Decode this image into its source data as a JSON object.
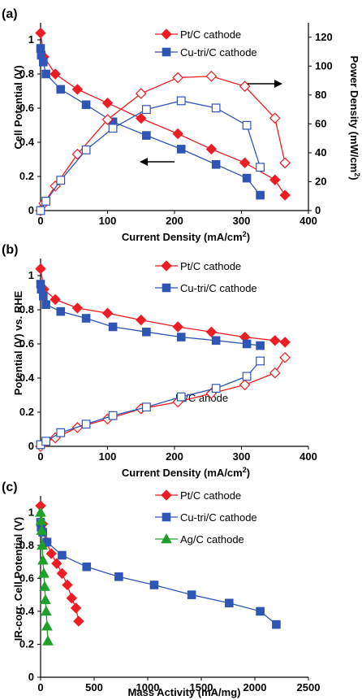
{
  "colors": {
    "pt": "#ee1c24",
    "cu": "#2f55b5",
    "ag": "#1fa02a",
    "axis": "#000000"
  },
  "chart_data": [
    {
      "panel_label": "(a)",
      "type": "line",
      "xlabel": "Current Density (mA/cm2)",
      "ylabel": "Cell Potential (V)",
      "y2label": "Power Density (mW/cm2)",
      "xlim": [
        0,
        400
      ],
      "ylim": [
        0,
        1.1
      ],
      "y2lim": [
        0,
        130
      ],
      "xticks": [
        "0",
        "100",
        "200",
        "300",
        "400"
      ],
      "yticks": [
        "0",
        "0.2",
        "0.4",
        "0.6",
        "0.8",
        "1"
      ],
      "y2ticks": [
        "0",
        "20",
        "40",
        "60",
        "80",
        "100",
        "120"
      ],
      "legend": [
        "Pt/C cathode",
        "Cu-tri/C cathode"
      ],
      "series": [
        {
          "name": "Pt/C cathode",
          "axis": "left",
          "marker": "diamond-filled",
          "color_key": "pt",
          "x": [
            0,
            5,
            22,
            55,
            100,
            150,
            205,
            255,
            305,
            350,
            365
          ],
          "y": [
            1.04,
            0.9,
            0.8,
            0.71,
            0.63,
            0.54,
            0.45,
            0.36,
            0.28,
            0.18,
            0.09
          ]
        },
        {
          "name": "Cu-tri/C cathode",
          "axis": "left",
          "marker": "square-filled",
          "color_key": "cu",
          "x": [
            0,
            1,
            4,
            8,
            30,
            68,
            108,
            158,
            210,
            262,
            308,
            328
          ],
          "y": [
            0.95,
            0.91,
            0.87,
            0.8,
            0.71,
            0.62,
            0.52,
            0.44,
            0.36,
            0.27,
            0.19,
            0.09
          ]
        },
        {
          "name": "Pt/C cathode (power)",
          "axis": "right",
          "marker": "diamond-open",
          "color_key": "pt",
          "x": [
            0,
            5,
            22,
            55,
            100,
            150,
            205,
            255,
            305,
            350,
            365
          ],
          "y": [
            0,
            5,
            17,
            39,
            63,
            81,
            92,
            93,
            86,
            64,
            33
          ]
        },
        {
          "name": "Cu-tri/C cathode (power)",
          "axis": "right",
          "marker": "square-open",
          "color_key": "cu",
          "x": [
            0,
            8,
            30,
            68,
            108,
            158,
            210,
            262,
            308,
            328
          ],
          "y": [
            0,
            6.5,
            21,
            42,
            57,
            70,
            76,
            71,
            59,
            30
          ]
        }
      ]
    },
    {
      "panel_label": "(b)",
      "type": "line",
      "xlabel": "Current Density (mA/cm2)",
      "ylabel": "Potential (V) vs. RHE",
      "xlim": [
        0,
        400
      ],
      "ylim": [
        0,
        1.1
      ],
      "xticks": [
        "0",
        "100",
        "200",
        "300",
        "400"
      ],
      "yticks": [
        "0",
        "0.2",
        "0.4",
        "0.6",
        "0.8",
        "1"
      ],
      "legend": [
        "Pt/C cathode",
        "Cu-tri/C cathode"
      ],
      "annotation": "Pt/C anode",
      "series": [
        {
          "name": "Pt/C cathode",
          "marker": "diamond-filled",
          "color_key": "pt",
          "x": [
            0,
            5,
            22,
            55,
            100,
            150,
            205,
            255,
            305,
            350,
            365
          ],
          "y": [
            1.04,
            0.92,
            0.86,
            0.81,
            0.78,
            0.74,
            0.7,
            0.67,
            0.64,
            0.62,
            0.61
          ]
        },
        {
          "name": "Cu-tri/C cathode",
          "marker": "square-filled",
          "color_key": "cu",
          "x": [
            0,
            1,
            4,
            8,
            30,
            68,
            108,
            158,
            210,
            262,
            308,
            328
          ],
          "y": [
            0.95,
            0.92,
            0.88,
            0.83,
            0.79,
            0.75,
            0.7,
            0.67,
            0.64,
            0.62,
            0.6,
            0.59
          ]
        },
        {
          "name": "Pt/C anode (Pt/C cathode run)",
          "marker": "diamond-open",
          "color_key": "pt",
          "x": [
            0,
            5,
            22,
            55,
            100,
            150,
            205,
            255,
            305,
            350,
            365
          ],
          "y": [
            0,
            0.02,
            0.05,
            0.11,
            0.16,
            0.22,
            0.26,
            0.31,
            0.36,
            0.43,
            0.52
          ]
        },
        {
          "name": "Pt/C anode (Cu-tri/C cathode run)",
          "marker": "square-open",
          "color_key": "cu",
          "x": [
            0,
            8,
            30,
            68,
            108,
            158,
            210,
            262,
            308,
            328
          ],
          "y": [
            0.01,
            0.03,
            0.08,
            0.13,
            0.18,
            0.23,
            0.29,
            0.34,
            0.41,
            0.5
          ]
        }
      ]
    },
    {
      "panel_label": "(c)",
      "type": "line",
      "xlabel": "Mass Activity (mA/mg)",
      "ylabel": "IR-corr. Cell Potential (V)",
      "xlim": [
        0,
        2500
      ],
      "ylim": [
        0,
        1.1
      ],
      "xticks": [
        "0",
        "500",
        "1000",
        "1500",
        "2000",
        "2500"
      ],
      "yticks": [
        "0",
        "0.2",
        "0.4",
        "0.6",
        "0.8",
        "1"
      ],
      "legend": [
        "Pt/C cathode",
        "Cu-tri/C cathode",
        "Ag/C cathode"
      ],
      "series": [
        {
          "name": "Pt/C cathode",
          "marker": "diamond-filled",
          "color_key": "pt",
          "x": [
            0,
            20,
            55,
            100,
            150,
            200,
            250,
            290,
            330,
            355
          ],
          "y": [
            1.04,
            0.93,
            0.82,
            0.75,
            0.69,
            0.63,
            0.56,
            0.48,
            0.42,
            0.34
          ]
        },
        {
          "name": "Cu-tri/C cathode",
          "marker": "square-filled",
          "color_key": "cu",
          "x": [
            0,
            5,
            20,
            60,
            200,
            430,
            730,
            1060,
            1410,
            1760,
            2050,
            2200
          ],
          "y": [
            0.94,
            0.91,
            0.88,
            0.82,
            0.74,
            0.67,
            0.61,
            0.56,
            0.5,
            0.45,
            0.4,
            0.32
          ]
        },
        {
          "name": "Ag/C cathode",
          "marker": "triangle-filled",
          "color_key": "ag",
          "x": [
            0,
            5,
            10,
            15,
            22,
            30,
            38,
            45,
            52,
            60,
            68
          ],
          "y": [
            1.0,
            0.95,
            0.89,
            0.8,
            0.71,
            0.63,
            0.55,
            0.47,
            0.4,
            0.31,
            0.22
          ]
        }
      ]
    }
  ]
}
